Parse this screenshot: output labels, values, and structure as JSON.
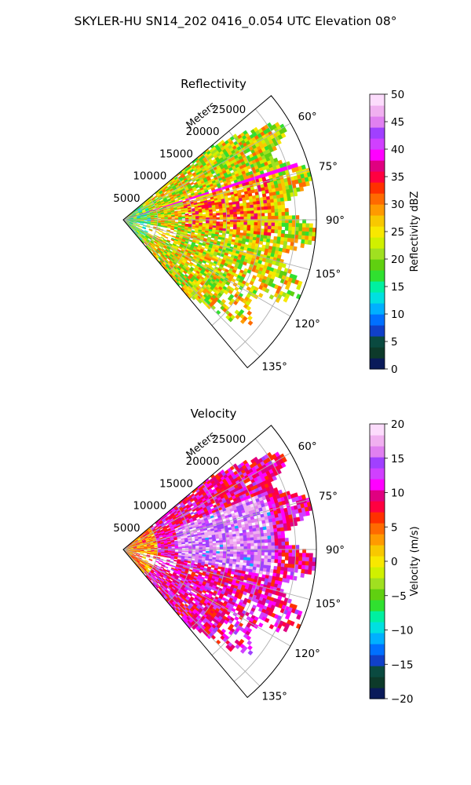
{
  "figure": {
    "title": "SKYLER-HU  SN14_202  0416_0.054 UTC Elevation 08°"
  },
  "chart_data": [
    {
      "type": "heatmap",
      "projection": "polar-sector",
      "title": "Reflectivity",
      "range_label": "Meters",
      "range_ticks": [
        5000,
        10000,
        15000,
        20000,
        25000
      ],
      "range_tick_labels": [
        "5000",
        "10000",
        "15000",
        "20000",
        "25000"
      ],
      "range_max": 28000,
      "azimuth_range_deg": [
        50,
        140
      ],
      "azimuth_ticks_deg": [
        60,
        75,
        90,
        105,
        120,
        135
      ],
      "azimuth_tick_labels": [
        "60°",
        "75°",
        "90°",
        "105°",
        "120°",
        "135°"
      ],
      "grid": true,
      "colorbar": {
        "label": "Reflectivity dBZ",
        "vmin": 0,
        "vmax": 50,
        "ticks": [
          0,
          5,
          10,
          15,
          20,
          25,
          30,
          35,
          40,
          45,
          50
        ],
        "tick_labels": [
          "0",
          "5",
          "10",
          "15",
          "20",
          "25",
          "30",
          "35",
          "40",
          "45",
          "50"
        ],
        "colors": [
          "#0a1a5a",
          "#0d3a2a",
          "#0a4a40",
          "#1040c8",
          "#0070ff",
          "#00b0ff",
          "#00e0e0",
          "#00f0a0",
          "#30e030",
          "#60d010",
          "#a0e020",
          "#d0f000",
          "#f8e800",
          "#f8c800",
          "#ff9a00",
          "#ff6a00",
          "#ff3000",
          "#ff0040",
          "#e00080",
          "#ff00ff",
          "#d040ff",
          "#a040ff",
          "#e080f0",
          "#f0b0f0",
          "#fcdcfc"
        ]
      },
      "field": {
        "mean_value": 24,
        "gate_value_range": [
          8,
          38
        ],
        "strong_echo_azimuths_deg": [
          72,
          96
        ],
        "strong_echo_ranges_m": [
          9000,
          22000
        ],
        "beam_artifact_azimuth_deg": 72.5,
        "beam_artifact_value": 40
      }
    },
    {
      "type": "heatmap",
      "projection": "polar-sector",
      "title": "Velocity",
      "range_label": "Meters",
      "range_ticks": [
        5000,
        10000,
        15000,
        20000,
        25000
      ],
      "range_tick_labels": [
        "5000",
        "10000",
        "15000",
        "20000",
        "25000"
      ],
      "range_max": 28000,
      "azimuth_range_deg": [
        50,
        140
      ],
      "azimuth_ticks_deg": [
        60,
        75,
        90,
        105,
        120,
        135
      ],
      "azimuth_tick_labels": [
        "60°",
        "75°",
        "90°",
        "105°",
        "120°",
        "135°"
      ],
      "grid": true,
      "colorbar": {
        "label": "Velocity (m/s)",
        "vmin": -20,
        "vmax": 20,
        "ticks": [
          -20,
          -15,
          -10,
          -5,
          0,
          5,
          10,
          15,
          20
        ],
        "tick_labels": [
          "−20",
          "−15",
          "−10",
          "−5",
          "0",
          "5",
          "10",
          "15",
          "20"
        ],
        "colors": [
          "#0a1a5a",
          "#0d3a2a",
          "#0a4a40",
          "#1040c8",
          "#0070ff",
          "#00b0ff",
          "#00e0e0",
          "#00f0a0",
          "#30e030",
          "#60d010",
          "#a0e020",
          "#d0f000",
          "#f8e800",
          "#f8c800",
          "#ff9a00",
          "#ff6a00",
          "#ff3000",
          "#ff0040",
          "#e00080",
          "#ff00ff",
          "#d040ff",
          "#a040ff",
          "#e080f0",
          "#f0b0f0",
          "#fcdcfc"
        ]
      },
      "field": {
        "near_range_value": 4,
        "outer_value": 10,
        "core_value": 16,
        "core_azimuths_deg": [
          68,
          100
        ],
        "core_ranges_m": [
          8000,
          22000
        ]
      }
    }
  ]
}
